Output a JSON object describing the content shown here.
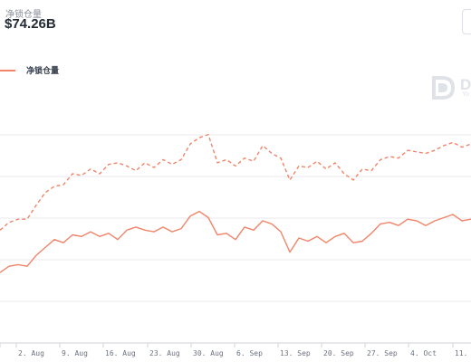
{
  "header": {
    "metric_label": "净锁仓量",
    "metric_value": "$74.26B"
  },
  "legend": {
    "label": "净锁仓量"
  },
  "watermark": {
    "letter": "D",
    "sub": "Yo"
  },
  "colors": {
    "series": "#f0856a",
    "grid": "#e8eaee",
    "text": "#6b7280"
  },
  "chart_data": {
    "type": "line",
    "title": "",
    "xlabel": "",
    "ylabel": "",
    "x_ticks": [
      "",
      "2. Aug",
      "9. Aug",
      "16. Aug",
      "23. Aug",
      "30. Aug",
      "6. Sep",
      "13. Sep",
      "20. Sep",
      "27. Sep",
      "4. Oct",
      "11."
    ],
    "x_range": [
      0,
      104
    ],
    "ylim": [
      0,
      8
    ],
    "grid": true,
    "legend_position": "top-left",
    "series": [
      {
        "name": "净锁仓量",
        "style": "solid",
        "x": [
          0,
          2,
          4,
          6,
          8,
          10,
          12,
          14,
          16,
          18,
          20,
          22,
          24,
          26,
          28,
          30,
          32,
          34,
          36,
          38,
          40,
          42,
          44,
          46,
          48,
          50,
          52,
          54,
          56,
          58,
          60,
          62,
          64,
          66,
          68,
          70,
          72,
          74,
          76,
          78,
          80,
          82,
          84,
          86,
          88,
          90,
          92,
          94,
          96,
          98,
          100,
          102,
          104
        ],
        "values": [
          2.25,
          2.45,
          2.5,
          2.45,
          2.8,
          3.05,
          3.3,
          3.2,
          3.45,
          3.4,
          3.55,
          3.4,
          3.5,
          3.3,
          3.6,
          3.7,
          3.6,
          3.55,
          3.7,
          3.55,
          3.65,
          4.05,
          4.2,
          4.0,
          3.45,
          3.5,
          3.3,
          3.7,
          3.6,
          3.9,
          3.8,
          3.55,
          2.9,
          3.35,
          3.25,
          3.4,
          3.2,
          3.4,
          3.5,
          3.2,
          3.25,
          3.5,
          3.8,
          3.85,
          3.75,
          3.95,
          3.9,
          3.75,
          3.9,
          4.0,
          4.1,
          3.9,
          3.95
        ]
      },
      {
        "name": "",
        "style": "dashed",
        "x": [
          0,
          2,
          4,
          6,
          8,
          10,
          12,
          14,
          16,
          18,
          20,
          22,
          24,
          26,
          28,
          30,
          32,
          34,
          36,
          38,
          40,
          42,
          44,
          46,
          48,
          50,
          52,
          54,
          56,
          58,
          60,
          62,
          64,
          66,
          68,
          70,
          72,
          74,
          76,
          78,
          80,
          82,
          84,
          86,
          88,
          90,
          92,
          94,
          96,
          98,
          100,
          102,
          104
        ],
        "values": [
          3.6,
          3.85,
          3.95,
          3.95,
          4.4,
          4.8,
          5.0,
          5.05,
          5.4,
          5.35,
          5.55,
          5.4,
          5.7,
          5.75,
          5.65,
          5.5,
          5.75,
          5.6,
          5.85,
          5.7,
          5.85,
          6.35,
          6.55,
          6.65,
          5.75,
          5.85,
          5.65,
          5.9,
          5.8,
          6.3,
          6.05,
          5.9,
          5.2,
          5.65,
          5.6,
          5.8,
          5.55,
          5.75,
          5.4,
          5.2,
          5.55,
          5.5,
          5.85,
          5.95,
          5.9,
          6.15,
          6.1,
          6.05,
          6.15,
          6.3,
          6.4,
          6.25,
          6.35
        ]
      }
    ]
  }
}
